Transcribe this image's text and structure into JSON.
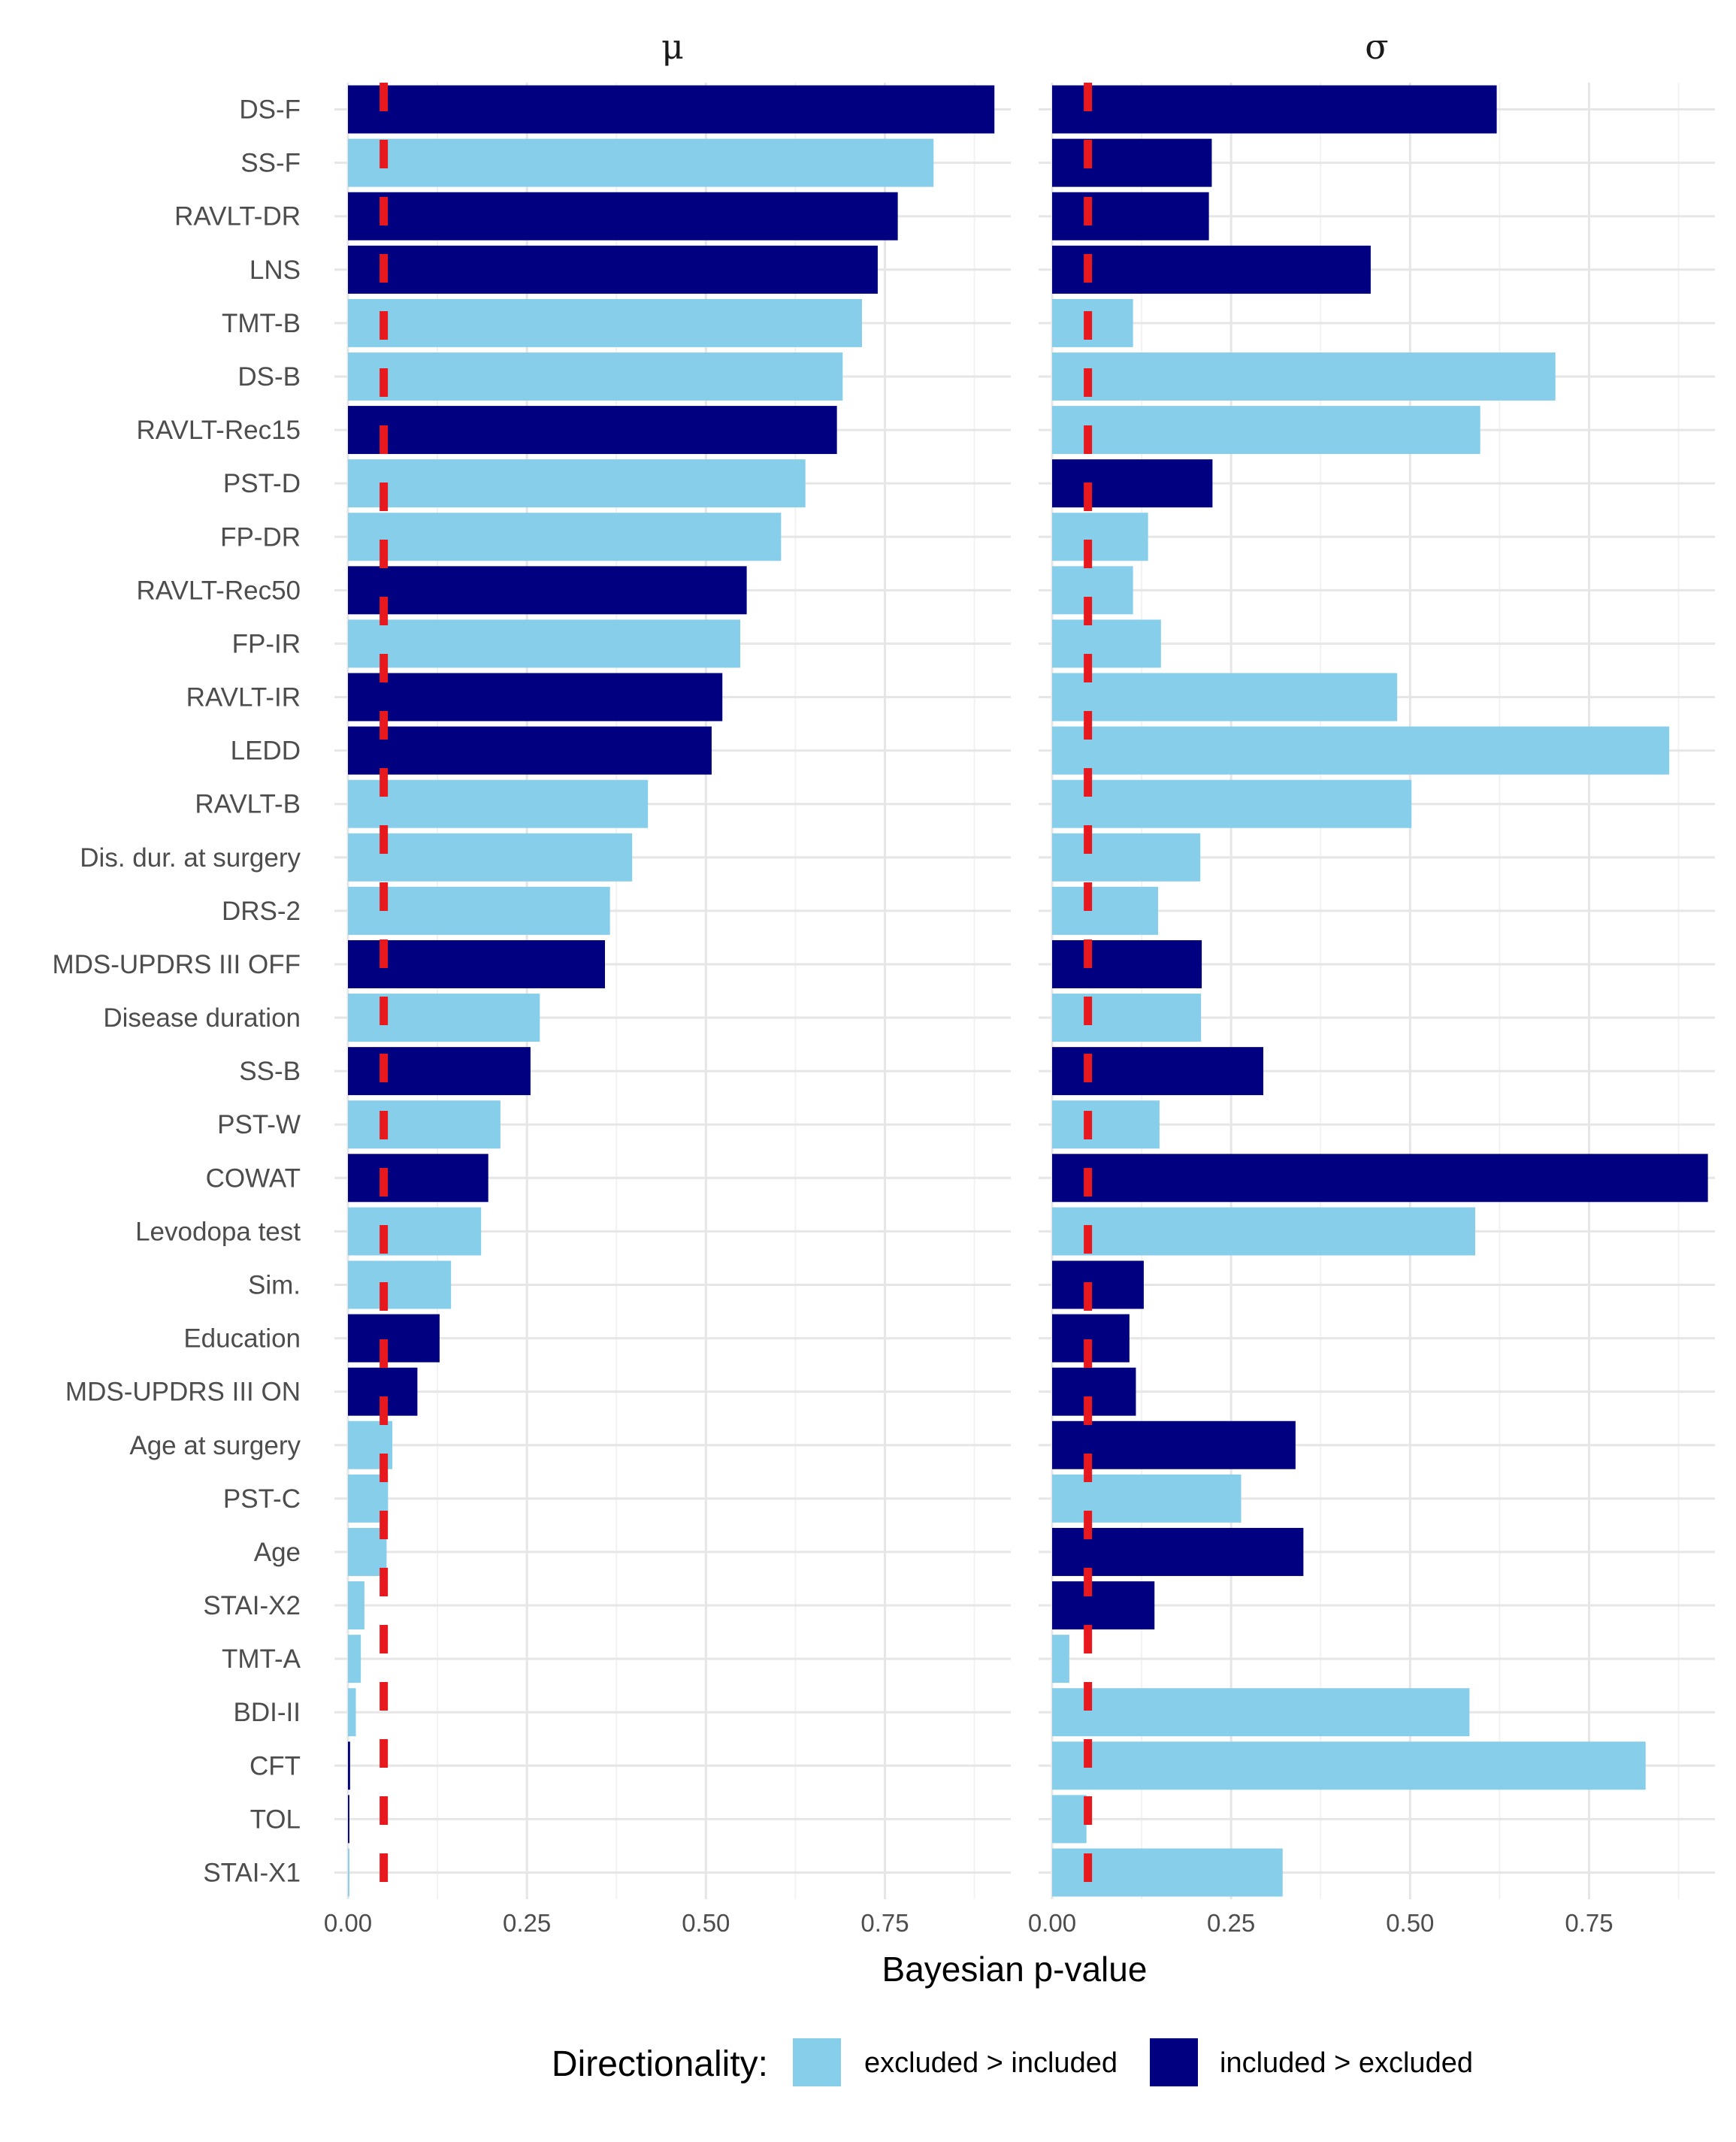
{
  "chart_data": {
    "type": "bar",
    "orientation": "horizontal",
    "xlabel": "Bayesian p-value",
    "xlim": [
      0,
      0.95
    ],
    "xticks": [
      "0.00",
      "0.25",
      "0.50",
      "0.75"
    ],
    "grid": true,
    "threshold": 0.05,
    "threshold_color": "#e8191e",
    "legend": {
      "title": "Directionality:",
      "position": "bottom",
      "entries": [
        {
          "key": "excl",
          "label": "excluded > included",
          "color": "#87ceeb"
        },
        {
          "key": "incl",
          "label": "included > excluded",
          "color": "#000080"
        }
      ]
    },
    "categories": [
      "DS-F",
      "SS-F",
      "RAVLT-DR",
      "LNS",
      "TMT-B",
      "DS-B",
      "RAVLT-Rec15",
      "PST-D",
      "FP-DR",
      "RAVLT-Rec50",
      "FP-IR",
      "RAVLT-IR",
      "LEDD",
      "RAVLT-B",
      "Dis. dur. at surgery",
      "DRS-2",
      "MDS-UPDRS III OFF",
      "Disease duration",
      "SS-B",
      "PST-W",
      "COWAT",
      "Levodopa test",
      "Sim.",
      "Education",
      "MDS-UPDRS III ON",
      "Age at surgery",
      "PST-C",
      "Age",
      "STAI-X2",
      "TMT-A",
      "BDI-II",
      "CFT",
      "TOL",
      "STAI-X1"
    ],
    "panels": [
      {
        "title": "μ",
        "values": [
          0.903,
          0.818,
          0.768,
          0.74,
          0.718,
          0.691,
          0.683,
          0.639,
          0.605,
          0.557,
          0.548,
          0.523,
          0.508,
          0.419,
          0.397,
          0.366,
          0.359,
          0.268,
          0.255,
          0.213,
          0.196,
          0.186,
          0.144,
          0.128,
          0.097,
          0.062,
          0.056,
          0.054,
          0.023,
          0.018,
          0.011,
          0.003,
          0.002,
          0.002
        ],
        "direction": [
          "incl",
          "excl",
          "incl",
          "incl",
          "excl",
          "excl",
          "incl",
          "excl",
          "excl",
          "incl",
          "excl",
          "incl",
          "incl",
          "excl",
          "excl",
          "excl",
          "incl",
          "excl",
          "incl",
          "excl",
          "incl",
          "excl",
          "excl",
          "incl",
          "incl",
          "excl",
          "excl",
          "excl",
          "excl",
          "excl",
          "excl",
          "incl",
          "incl",
          "excl"
        ]
      },
      {
        "title": "σ",
        "values": [
          0.621,
          0.223,
          0.219,
          0.445,
          0.113,
          0.703,
          0.598,
          0.224,
          0.134,
          0.113,
          0.152,
          0.482,
          0.862,
          0.502,
          0.207,
          0.148,
          0.209,
          0.208,
          0.295,
          0.15,
          0.916,
          0.591,
          0.128,
          0.108,
          0.117,
          0.34,
          0.264,
          0.351,
          0.143,
          0.024,
          0.583,
          0.829,
          0.048,
          0.322
        ],
        "direction": [
          "incl",
          "incl",
          "incl",
          "incl",
          "excl",
          "excl",
          "excl",
          "incl",
          "excl",
          "excl",
          "excl",
          "excl",
          "excl",
          "excl",
          "excl",
          "excl",
          "incl",
          "excl",
          "incl",
          "excl",
          "incl",
          "excl",
          "incl",
          "incl",
          "incl",
          "incl",
          "excl",
          "incl",
          "incl",
          "excl",
          "excl",
          "excl",
          "excl",
          "excl"
        ]
      }
    ]
  }
}
